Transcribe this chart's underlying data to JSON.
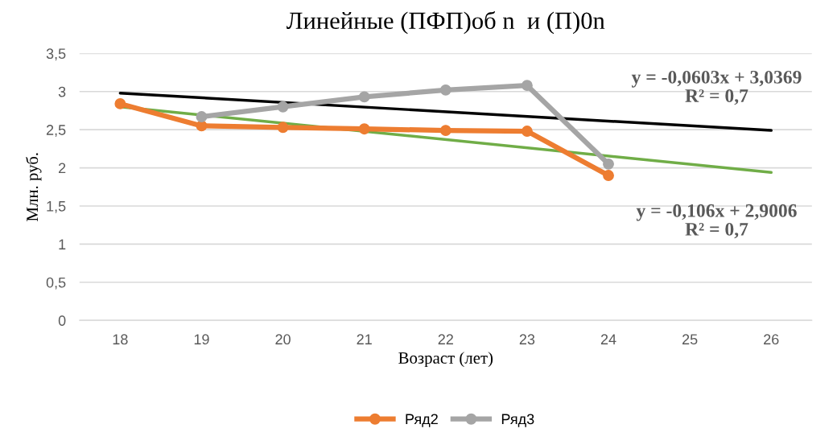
{
  "chart_data": {
    "type": "line",
    "title": "Линейные (ПФП)об n  и (П)0n",
    "xlabel": "Возраст (лет)",
    "ylabel": "Млн. руб.",
    "xlim": [
      17.5,
      26.5
    ],
    "xticks": [
      18,
      19,
      20,
      21,
      22,
      23,
      24,
      25,
      26
    ],
    "ylim": [
      0,
      3.5
    ],
    "yticks": [
      {
        "value": 0,
        "label": "0"
      },
      {
        "value": 0.5,
        "label": "0,5"
      },
      {
        "value": 1,
        "label": "1"
      },
      {
        "value": 1.5,
        "label": "1,5"
      },
      {
        "value": 2,
        "label": "2"
      },
      {
        "value": 2.5,
        "label": "2,5"
      },
      {
        "value": 3,
        "label": "3"
      },
      {
        "value": 3.5,
        "label": "3,5"
      }
    ],
    "grid": "y",
    "legend": "bottom",
    "series": [
      {
        "name": "Ряд2",
        "color": "#ed7d31",
        "marker": "circle",
        "x": [
          18,
          19,
          20,
          21,
          22,
          23,
          24
        ],
        "values": [
          2.84,
          2.55,
          2.53,
          2.51,
          2.49,
          2.48,
          1.9
        ]
      },
      {
        "name": "Ряд3",
        "color": "#a5a5a5",
        "marker": "circle",
        "x": [
          19,
          20,
          21,
          22,
          23,
          24
        ],
        "values": [
          2.67,
          2.8,
          2.93,
          3.02,
          3.08,
          2.05
        ]
      },
      {
        "color": "#000000",
        "marker": "none",
        "x": [
          18,
          26
        ],
        "values": [
          2.98,
          2.49
        ]
      },
      {
        "color": "#70ad47",
        "marker": "none",
        "x": [
          18,
          26
        ],
        "values": [
          2.8,
          1.94
        ]
      }
    ],
    "annotations": [
      "y = -0,0603x + 3,0369\nR² = 0,7",
      "y = -0,106x + 2,9006\nR² = 0,7"
    ]
  }
}
